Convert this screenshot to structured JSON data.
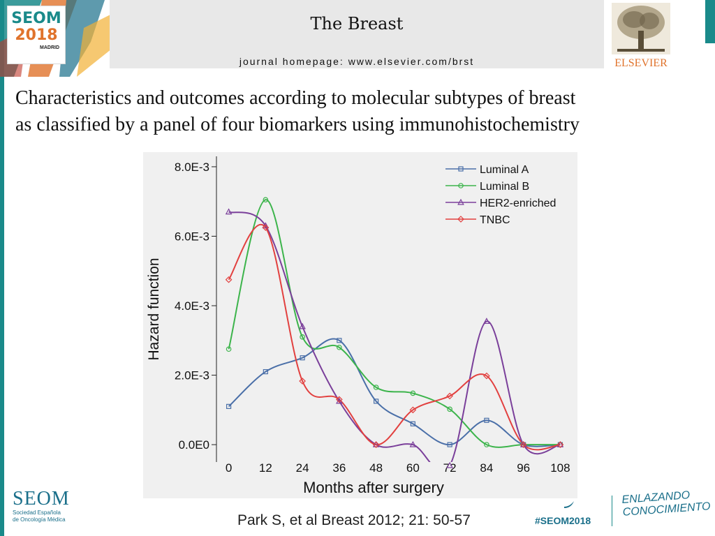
{
  "header": {
    "logo": {
      "line1": "SEOM",
      "line2": "2018",
      "line3": "MADRID"
    },
    "journal_name": "The Breast",
    "journal_url": "journal homepage: www.elsevier.com/brst",
    "publisher": "ELSEVIER"
  },
  "slide": {
    "title_line1": "Characteristics and outcomes according to molecular subtypes of breast",
    "title_line2": "as classified by a panel of four biomarkers using immunohistochemistry"
  },
  "chart_data": {
    "type": "line",
    "title": "",
    "xlabel": "Months after surgery",
    "ylabel": "Hazard function",
    "x": [
      0,
      12,
      24,
      36,
      48,
      60,
      72,
      84,
      96,
      108
    ],
    "x_ticks": [
      "0",
      "12",
      "24",
      "36",
      "48",
      "60",
      "72",
      "84",
      "96",
      "108"
    ],
    "xlim": [
      -4,
      112
    ],
    "ylim": [
      -0.0005,
      0.0083
    ],
    "y_ticks": [
      0,
      0.002,
      0.004,
      0.006,
      0.008
    ],
    "y_tick_labels": [
      "0.0E0",
      "2.0E-3",
      "4.0E-3",
      "6.0E-3",
      "8.0E-3"
    ],
    "legend_position": "top-right",
    "grid": false,
    "series": [
      {
        "name": "Luminal A",
        "marker": "square",
        "color": "#4a6fa8",
        "values": [
          0.0011,
          0.0021,
          0.0025,
          0.003,
          0.00125,
          0.0006,
          0.0,
          0.0007,
          0.0,
          0.0
        ]
      },
      {
        "name": "Luminal B",
        "marker": "circle",
        "color": "#3cb44b",
        "values": [
          0.00275,
          0.00705,
          0.0031,
          0.0028,
          0.00165,
          0.00148,
          0.00102,
          0.0,
          0.0,
          0.0
        ]
      },
      {
        "name": "HER2-enriched",
        "marker": "triangle",
        "color": "#7a3f9a",
        "values": [
          0.0067,
          0.0063,
          0.0034,
          0.00125,
          0.0,
          0.0,
          -0.0006,
          0.00355,
          0.0,
          0.0
        ]
      },
      {
        "name": "TNBC",
        "marker": "diamond",
        "color": "#e2403f",
        "values": [
          0.00475,
          0.00625,
          0.00183,
          0.0013,
          0.0,
          0.001,
          0.0014,
          0.00198,
          0.0,
          0.0
        ]
      }
    ]
  },
  "footer": {
    "citation": "Park S, et al Breast 2012; 21: 50-57",
    "seom_logo": {
      "big": "SEOM",
      "small1": "Sociedad Española",
      "small2": "de Oncología Médica"
    },
    "hashtag": "#SEOM2018",
    "slogan1": "ENLAZANDO",
    "slogan2": "CONOCIMIENTO"
  },
  "colors": {
    "teal": "#1a8a8a",
    "orange": "#e0732c",
    "banner_gray": "#e8e8e8",
    "chart_bg": "#f0f0f0"
  }
}
